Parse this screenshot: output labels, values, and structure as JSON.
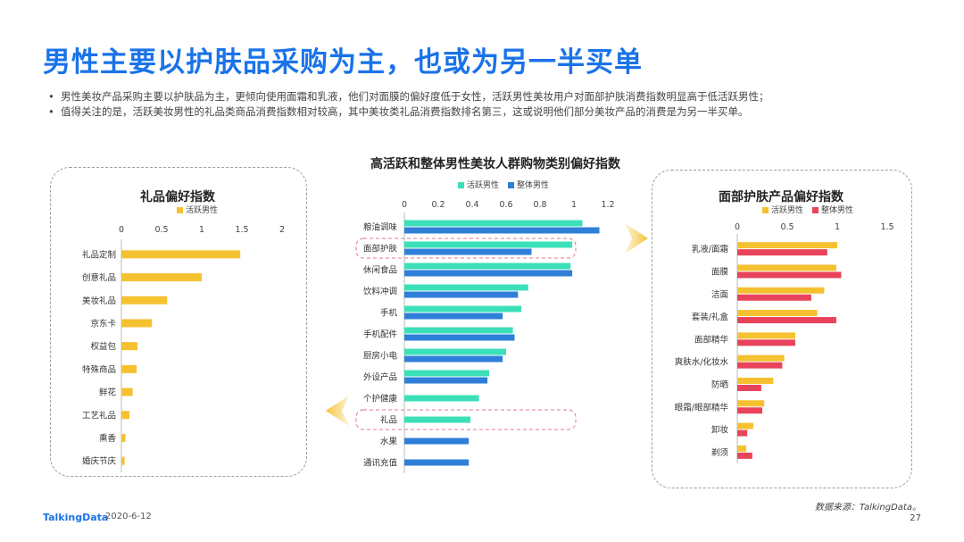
{
  "slide": {
    "title": "男性主要以护肤品采购为主，也或为另一半买单",
    "bullets": [
      "男性美妆产品采购主要以护肤品为主，更倾向使用面霜和乳液，他们对面膜的偏好度低于女性，活跃男性美妆用户对面部护肤消费指数明显高于低活跃男性；",
      "值得关注的是，活跃美妆男性的礼品类商品消费指数相对较高，其中美妆类礼品消费指数排名第三，这或说明他们部分美妆产品的消费是为另一半买单。"
    ],
    "source": "数据来源：TalkingData。",
    "logo": "TalkingData",
    "date": "2020-6-12",
    "page": "27"
  },
  "colors": {
    "active": "#f5c131",
    "overall": "#2f7fd8",
    "active_center": "#3ce0b8",
    "overall_right": "#e8435a",
    "title": "#1a73e8"
  },
  "chart_data": [
    {
      "type": "bar",
      "orientation": "horizontal",
      "title": "礼品偏好指数",
      "categories": [
        "礼品定制",
        "创意礼品",
        "美妆礼品",
        "京东卡",
        "权益包",
        "特殊商品",
        "鲜花",
        "工艺礼品",
        "熏香",
        "婚庆节庆"
      ],
      "series": [
        {
          "name": "活跃男性",
          "values": [
            1.48,
            1.0,
            0.57,
            0.38,
            0.2,
            0.19,
            0.14,
            0.1,
            0.05,
            0.04
          ]
        }
      ],
      "xlim": [
        0,
        2
      ],
      "ticks": [
        "0",
        "0.5",
        "1",
        "1.5",
        "2"
      ],
      "legend": "top"
    },
    {
      "type": "bar",
      "orientation": "horizontal",
      "title": "高活跃和整体男性美妆人群购物类别偏好指数",
      "categories": [
        "粮油调味",
        "面部护肤",
        "休闲食品",
        "饮料冲调",
        "手机",
        "手机配件",
        "厨房小电",
        "外设产品",
        "个护健康",
        "礼品",
        "水果",
        "通讯充值"
      ],
      "series": [
        {
          "name": "活跃男性",
          "values": [
            1.05,
            0.99,
            0.98,
            0.73,
            0.69,
            0.64,
            0.6,
            0.5,
            0.44,
            0.39,
            null,
            null
          ]
        },
        {
          "name": "整体男性",
          "values": [
            1.15,
            0.75,
            0.99,
            0.67,
            0.58,
            0.65,
            0.58,
            0.49,
            null,
            null,
            0.38,
            0.38
          ]
        }
      ],
      "xlim": [
        0,
        1.2
      ],
      "ticks": [
        "0",
        "0.2",
        "0.4",
        "0.6",
        "0.8",
        "1",
        "1.2"
      ],
      "legend": "top",
      "highlighted": [
        "面部护肤",
        "礼品"
      ]
    },
    {
      "type": "bar",
      "orientation": "horizontal",
      "title": "面部护肤产品偏好指数",
      "categories": [
        "乳液/面霜",
        "面膜",
        "洁面",
        "套装/礼盒",
        "面部精华",
        "爽肤水/化妆水",
        "防晒",
        "眼霜/眼部精华",
        "卸妆",
        "剃须"
      ],
      "series": [
        {
          "name": "活跃男性",
          "values": [
            1.0,
            0.99,
            0.87,
            0.8,
            0.58,
            0.47,
            0.36,
            0.27,
            0.16,
            0.09
          ]
        },
        {
          "name": "整体男性",
          "values": [
            0.9,
            1.04,
            0.74,
            0.99,
            0.58,
            0.45,
            0.24,
            0.25,
            0.1,
            0.15
          ]
        }
      ],
      "xlim": [
        0,
        1.5
      ],
      "ticks": [
        "0",
        "0.5",
        "1",
        "1.5"
      ],
      "legend": "top"
    }
  ]
}
